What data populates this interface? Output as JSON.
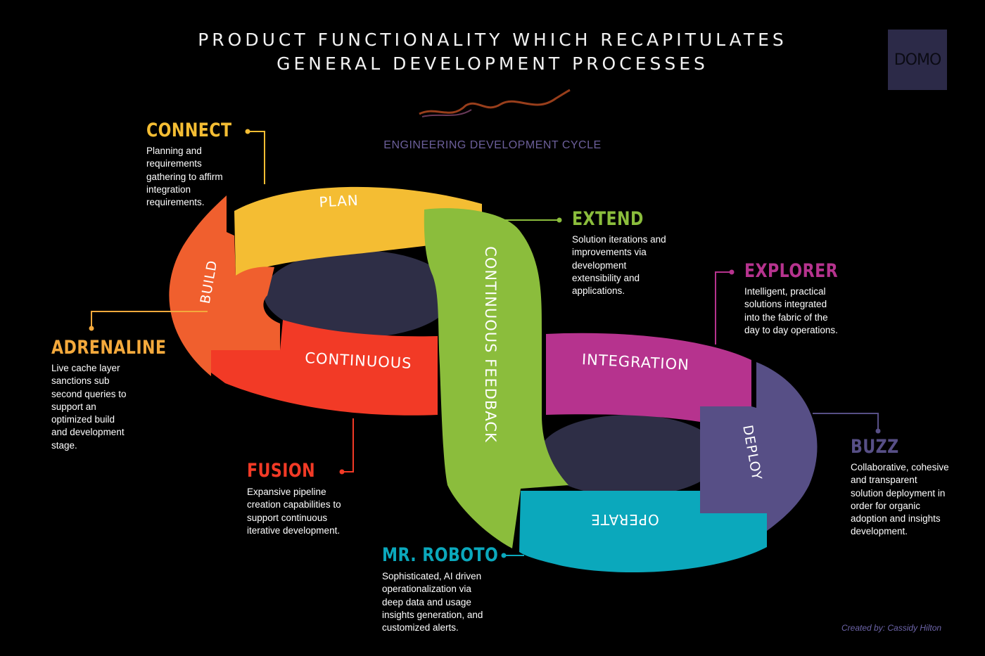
{
  "title_line1": "PRODUCT FUNCTIONALITY WHICH RECAPITULATES",
  "title_line2": "GENERAL DEVELOPMENT PROCESSES",
  "subtitle": "ENGINEERING DEVELOPMENT CYCLE",
  "logo_text": "DOMO",
  "credit": "Created by: Cassidy Hilton",
  "segments": {
    "plan": "PLAN",
    "build": "BUILD",
    "continuous": "CONTINUOUS",
    "feedback": "CONTINUOUS FEEDBACK",
    "integration": "INTEGRATION",
    "deploy": "DEPLOY",
    "operate": "OPERATE"
  },
  "colors": {
    "connect": "#F4BD33",
    "adrenaline": "#F4A93C",
    "fusion": "#F23A26",
    "extend": "#8BBD3C",
    "explorer": "#B6338E",
    "buzz": "#574F86",
    "roboto": "#0BA8BC"
  },
  "features": {
    "connect": {
      "title": "CONNECT",
      "desc": [
        "Planning and",
        "requirements",
        "gathering to affirm",
        "integration",
        "requirements."
      ]
    },
    "adrenaline": {
      "title": "ADRENALINE",
      "desc": [
        "Live cache layer",
        "sanctions sub",
        "second queries to",
        "support an",
        "optimized build",
        "and development",
        "stage."
      ]
    },
    "fusion": {
      "title": "FUSION",
      "desc": [
        "Expansive pipeline",
        "creation capabilities to",
        "support continuous",
        "iterative development."
      ]
    },
    "extend": {
      "title": "EXTEND",
      "desc": [
        "Solution iterations and",
        "improvements via",
        "development",
        "extensibility and",
        "applications."
      ]
    },
    "explorer": {
      "title": "EXPLORER",
      "desc": [
        "Intelligent, practical",
        "solutions integrated",
        "into the fabric of the",
        "day to day operations."
      ]
    },
    "buzz": {
      "title": "BUZZ",
      "desc": [
        "Collaborative, cohesive",
        "and transparent",
        "solution deployment in",
        "order for organic",
        "adoption and insights",
        "development."
      ]
    },
    "roboto": {
      "title": "MR. ROBOTO",
      "desc": [
        "Sophisticated, AI driven",
        "operationalization via",
        "deep data and usage",
        "insights generation, and",
        "customized alerts."
      ]
    }
  }
}
